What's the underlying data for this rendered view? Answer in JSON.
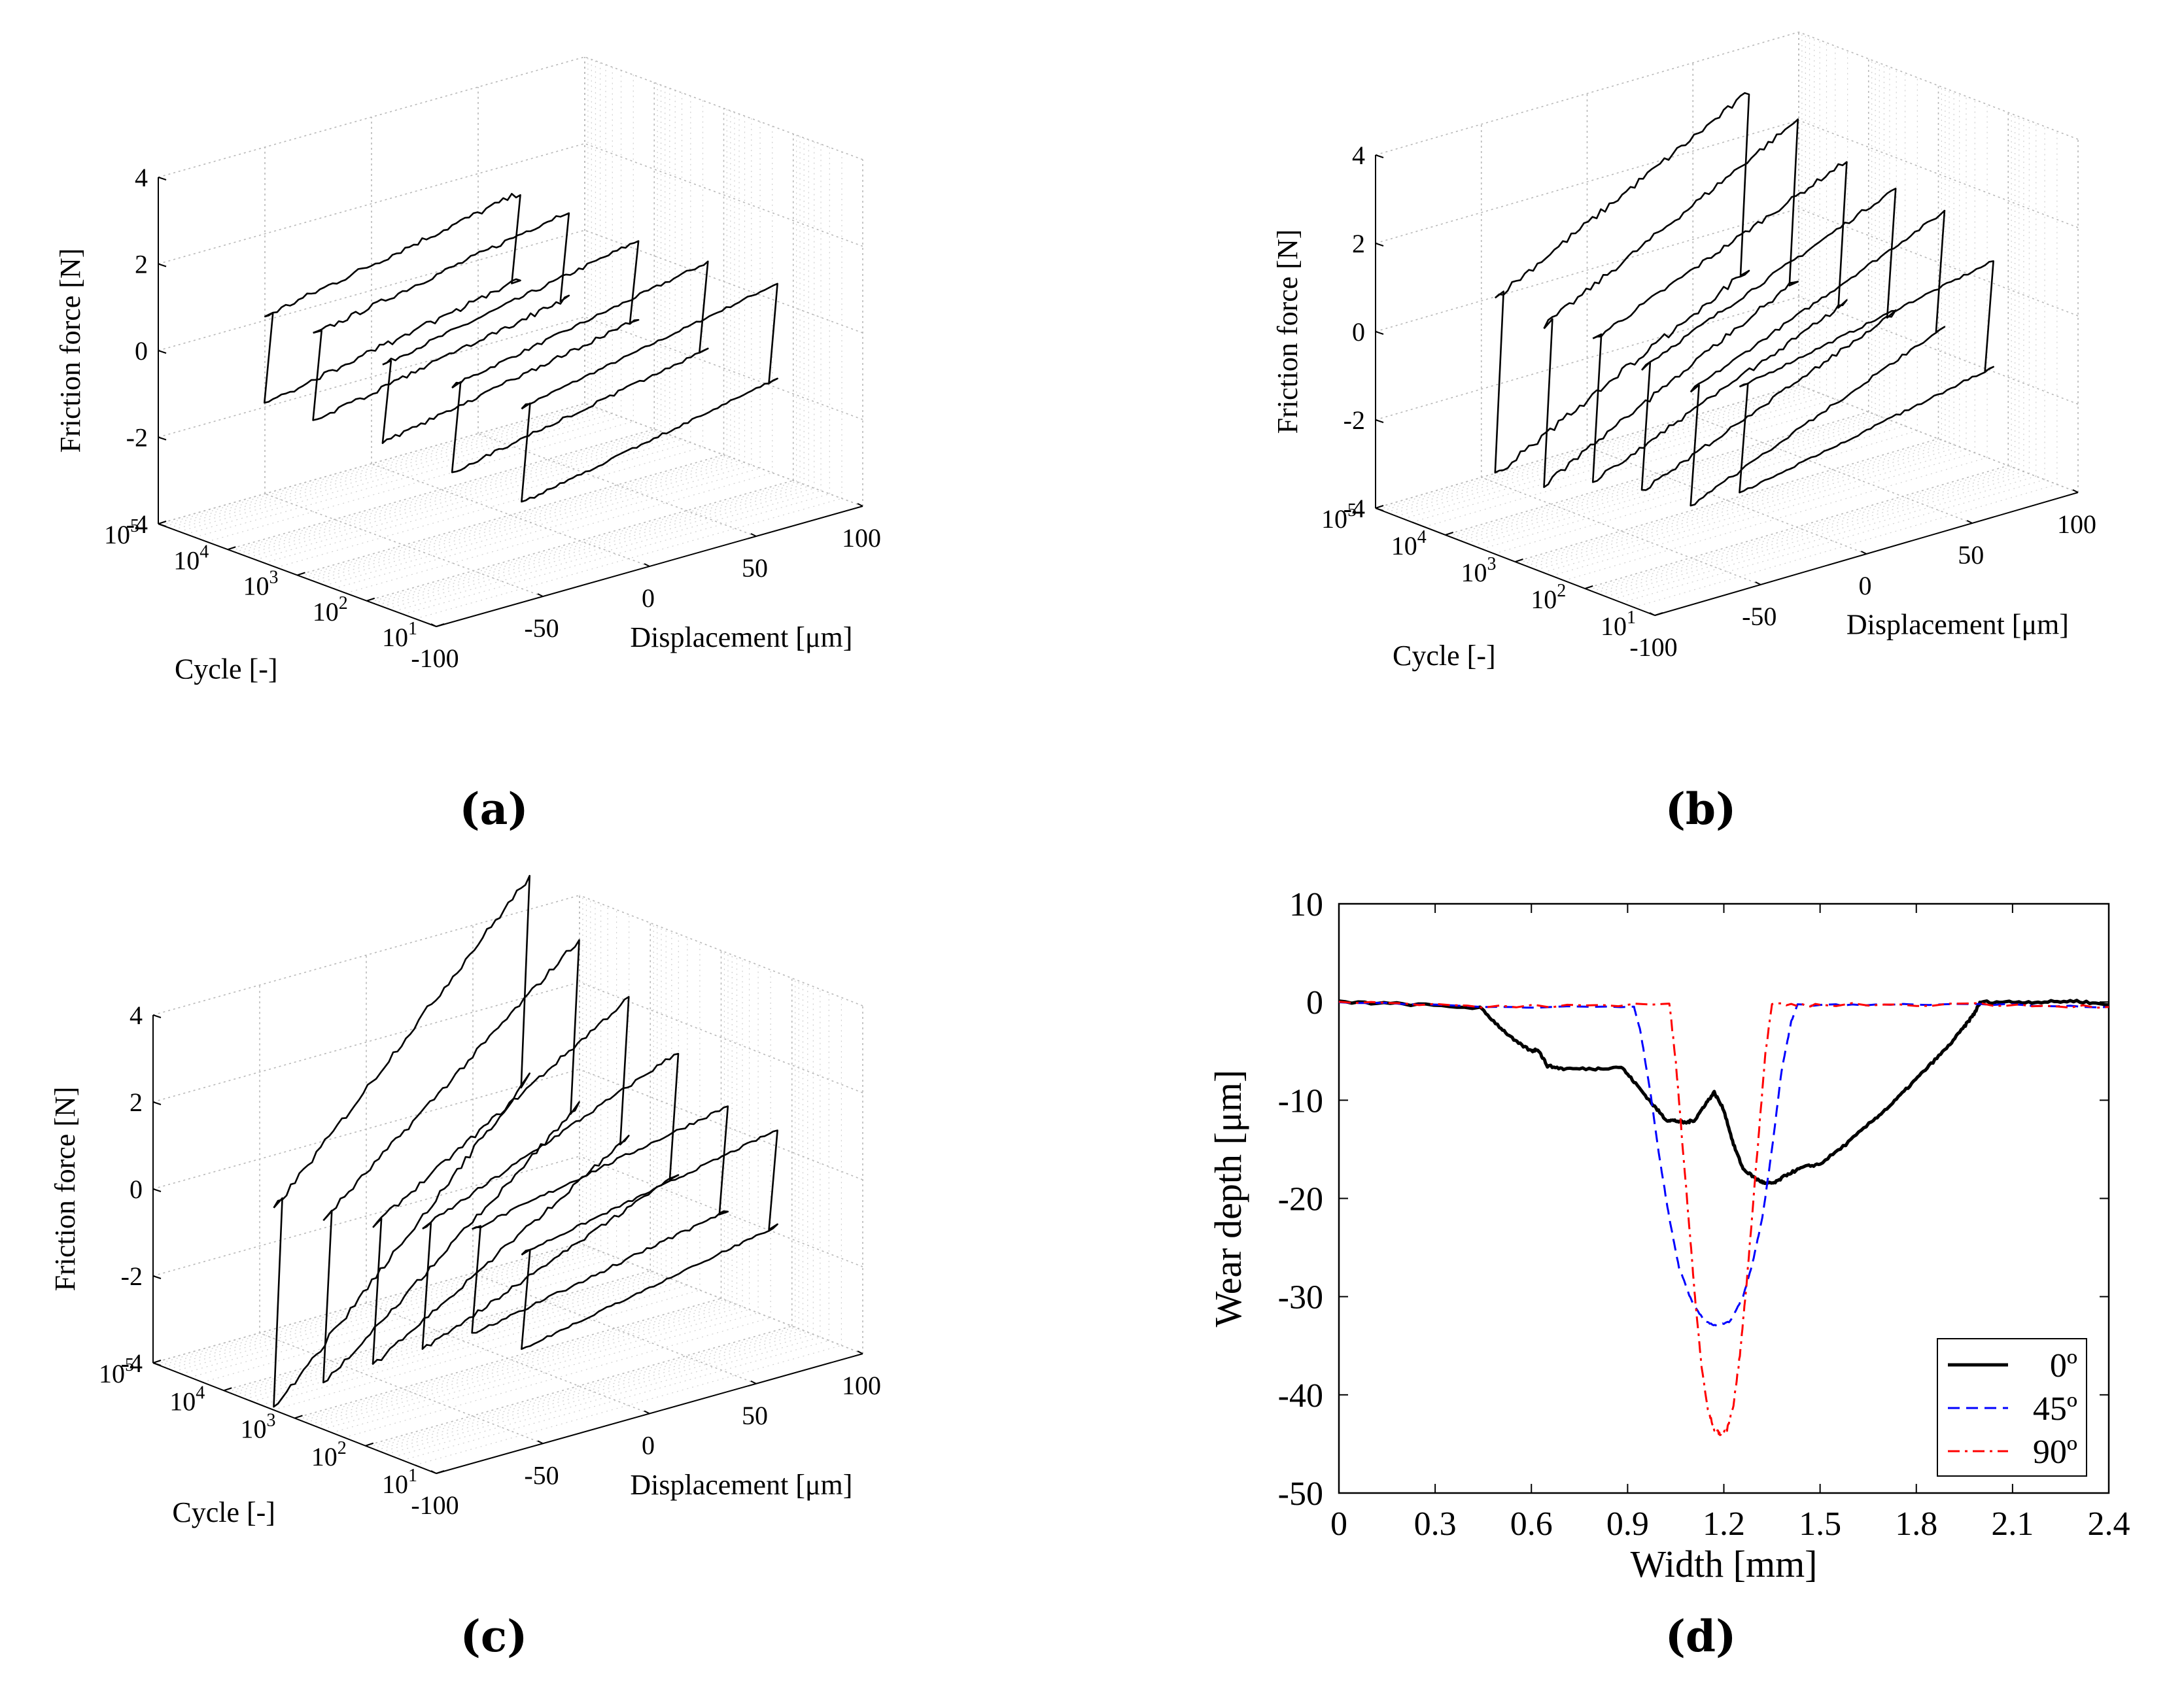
{
  "panels": {
    "a": {
      "label": "(a)"
    },
    "b": {
      "label": "(b)"
    },
    "c": {
      "label": "(c)"
    },
    "d": {
      "label": "(d)"
    }
  },
  "chart_data": [
    {
      "id": "a",
      "type": "line",
      "title": "",
      "xlabel": "Displacement [μm]",
      "ylabel": "Cycle [-]",
      "zlabel": "Friction force [N]",
      "x_ticks": [
        "-100",
        "-50",
        "0",
        "50",
        "100"
      ],
      "y_tick_bases": [
        "10",
        "10",
        "10",
        "10",
        "10"
      ],
      "y_tick_exps": [
        "1",
        "2",
        "3",
        "4",
        "5"
      ],
      "z_ticks": [
        "-4",
        "-2",
        "0",
        "2",
        "4"
      ],
      "xlim": [
        -100,
        100
      ],
      "zlim": [
        -4,
        4
      ],
      "ylim_log": [
        1,
        5
      ],
      "series": [
        {
          "cycle_log": 1.0,
          "amp": 60,
          "f": 1.1,
          "slope": 0.01
        },
        {
          "cycle_log": 2.0,
          "amp": 60,
          "f": 1.0,
          "slope": 0.01
        },
        {
          "cycle_log": 3.0,
          "amp": 60,
          "f": 0.9,
          "slope": 0.01
        },
        {
          "cycle_log": 4.0,
          "amp": 60,
          "f": 1.0,
          "slope": 0.01
        },
        {
          "cycle_log": 4.7,
          "amp": 60,
          "f": 1.0,
          "slope": 0.01
        }
      ]
    },
    {
      "id": "b",
      "type": "line",
      "title": "",
      "xlabel": "Displacement [μm]",
      "ylabel": "Cycle [-]",
      "zlabel": "Friction force [N]",
      "x_ticks": [
        "-100",
        "-50",
        "0",
        "50",
        "100"
      ],
      "y_tick_bases": [
        "10",
        "10",
        "10",
        "10",
        "10"
      ],
      "y_tick_exps": [
        "1",
        "2",
        "3",
        "4",
        "5"
      ],
      "z_ticks": [
        "-4",
        "-2",
        "0",
        "2",
        "4"
      ],
      "xlim": [
        -100,
        100
      ],
      "zlim": [
        -4,
        4
      ],
      "ylim_log": [
        1,
        5
      ],
      "series": [
        {
          "cycle_log": 1.0,
          "amp": 60,
          "f": 1.2,
          "slope": 0.01
        },
        {
          "cycle_log": 1.7,
          "amp": 60,
          "f": 1.3,
          "slope": 0.02
        },
        {
          "cycle_log": 2.4,
          "amp": 60,
          "f": 1.4,
          "slope": 0.02
        },
        {
          "cycle_log": 3.1,
          "amp": 60,
          "f": 1.6,
          "slope": 0.02
        },
        {
          "cycle_log": 3.8,
          "amp": 60,
          "f": 1.8,
          "slope": 0.025
        },
        {
          "cycle_log": 4.5,
          "amp": 60,
          "f": 2.0,
          "slope": 0.025
        }
      ]
    },
    {
      "id": "c",
      "type": "line",
      "title": "",
      "xlabel": "Displacement [μm]",
      "ylabel": "Cycle [-]",
      "zlabel": "Friction force [N]",
      "x_ticks": [
        "-100",
        "-50",
        "0",
        "50",
        "100"
      ],
      "y_tick_bases": [
        "10",
        "10",
        "10",
        "10",
        "10"
      ],
      "y_tick_exps": [
        "1",
        "2",
        "3",
        "4",
        "5"
      ],
      "z_ticks": [
        "-4",
        "-2",
        "0",
        "2",
        "4"
      ],
      "xlim": [
        -100,
        100
      ],
      "zlim": [
        -4,
        4
      ],
      "ylim_log": [
        1,
        5
      ],
      "series": [
        {
          "cycle_log": 1.0,
          "amp": 60,
          "f": 1.1,
          "slope": 0.01
        },
        {
          "cycle_log": 1.7,
          "amp": 60,
          "f": 1.2,
          "slope": 0.01
        },
        {
          "cycle_log": 2.4,
          "amp": 60,
          "f": 1.4,
          "slope": 0.02
        },
        {
          "cycle_log": 3.1,
          "amp": 60,
          "f": 1.6,
          "slope": 0.03
        },
        {
          "cycle_log": 3.8,
          "amp": 60,
          "f": 1.9,
          "slope": 0.04
        },
        {
          "cycle_log": 4.5,
          "amp": 60,
          "f": 2.3,
          "slope": 0.05
        }
      ]
    },
    {
      "id": "d",
      "type": "line",
      "title": "",
      "xlabel": "Width [mm]",
      "ylabel": "Wear depth [μm]",
      "xlim": [
        0,
        2.4
      ],
      "ylim": [
        -50,
        10
      ],
      "x_ticks": [
        "0",
        "0.3",
        "0.6",
        "0.9",
        "1.2",
        "1.5",
        "1.8",
        "2.1",
        "2.4"
      ],
      "y_ticks": [
        "10",
        "0",
        "-10",
        "-20",
        "-30",
        "-40",
        "-50"
      ],
      "legend_position": "bottom-right",
      "series": [
        {
          "name": "0º",
          "color": "#000000",
          "style": "solid",
          "x": [
            0,
            0.2,
            0.44,
            0.5,
            0.55,
            0.6,
            0.62,
            0.65,
            0.7,
            0.8,
            0.88,
            0.93,
            0.98,
            1.02,
            1.05,
            1.08,
            1.11,
            1.14,
            1.17,
            1.2,
            1.23,
            1.26,
            1.3,
            1.33,
            1.36,
            1.4,
            1.45,
            1.5,
            1.58,
            1.66,
            1.72,
            1.78,
            1.84,
            1.9,
            1.95,
            1.98,
            2.0,
            2.1,
            2.2,
            2.3,
            2.4
          ],
          "y": [
            0,
            -0.2,
            -0.6,
            -2.5,
            -4.0,
            -5.0,
            -4.8,
            -6.5,
            -6.8,
            -6.8,
            -6.6,
            -8.5,
            -10.5,
            -12.0,
            -12.1,
            -12.3,
            -12.0,
            -10.5,
            -9.2,
            -11.0,
            -14.5,
            -17.0,
            -18.0,
            -18.5,
            -18.4,
            -17.5,
            -16.8,
            -16.5,
            -14.5,
            -12.2,
            -10.5,
            -8.5,
            -6.5,
            -4.5,
            -2.5,
            -1.2,
            0,
            0,
            0,
            0.1,
            -0.3
          ]
        },
        {
          "name": "45º",
          "color": "#0000ff",
          "style": "dashed",
          "x": [
            0,
            0.5,
            0.92,
            0.94,
            0.97,
            1.0,
            1.03,
            1.06,
            1.1,
            1.14,
            1.18,
            1.22,
            1.26,
            1.29,
            1.32,
            1.35,
            1.38,
            1.41,
            1.43,
            1.6,
            2.0,
            2.4
          ],
          "y": [
            0,
            -0.5,
            -0.5,
            -3,
            -9,
            -16,
            -22,
            -27,
            -30.5,
            -32.5,
            -33,
            -32.5,
            -30,
            -26.5,
            -22,
            -15,
            -7,
            -2,
            -0.3,
            -0.3,
            -0.2,
            -0.5
          ],
          "noise": 0.15
        },
        {
          "name": "90º",
          "color": "#ff0000",
          "style": "dashdot",
          "x": [
            0,
            0.5,
            1.03,
            1.05,
            1.07,
            1.09,
            1.11,
            1.13,
            1.15,
            1.17,
            1.19,
            1.21,
            1.23,
            1.25,
            1.27,
            1.29,
            1.31,
            1.33,
            1.35,
            1.5,
            2.0,
            2.4
          ],
          "y": [
            0,
            -0.5,
            -0.2,
            -6,
            -14,
            -22,
            -30,
            -37,
            -41.5,
            -43.5,
            -44,
            -43.5,
            -41,
            -36,
            -29,
            -21,
            -13,
            -5,
            -0.3,
            -0.3,
            -0.2,
            -0.5
          ],
          "noise": 0.35
        }
      ]
    }
  ]
}
